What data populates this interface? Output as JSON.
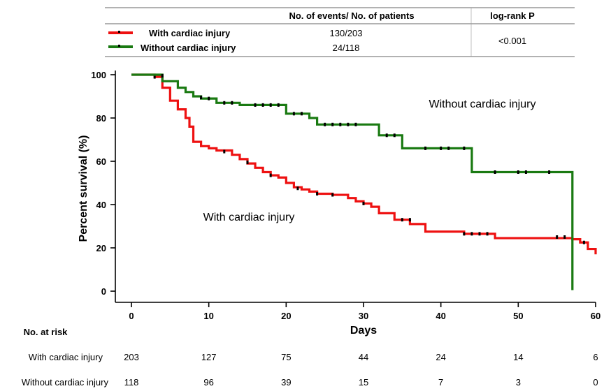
{
  "legend_table": {
    "col_events": "No. of events/ No. of patients",
    "col_p": "log-rank P",
    "rows": [
      {
        "label": "With cardiac injury",
        "events": "130/203"
      },
      {
        "label": "Without cardiac injury",
        "events": "24/118"
      }
    ],
    "p_value": "<0.001"
  },
  "colors": {
    "with": "#ee1111",
    "without": "#1a7a12"
  },
  "chart_data": {
    "type": "line",
    "subtype": "kaplan-meier step",
    "xlabel": "Days",
    "ylabel": "Percent survival (%)",
    "xlim": [
      0,
      60
    ],
    "ylim": [
      0,
      100
    ],
    "xticks": [
      0,
      10,
      20,
      30,
      40,
      50,
      60
    ],
    "yticks": [
      0,
      20,
      40,
      60,
      80,
      100
    ],
    "annotations": [
      "Without cardiac injury",
      "With cardiac injury"
    ],
    "series": [
      {
        "name": "With cardiac injury",
        "steps": [
          [
            0,
            100
          ],
          [
            3,
            99
          ],
          [
            4,
            94
          ],
          [
            5,
            88
          ],
          [
            6,
            84
          ],
          [
            7,
            80
          ],
          [
            7.5,
            76
          ],
          [
            8,
            69
          ],
          [
            9,
            67
          ],
          [
            10,
            66
          ],
          [
            11,
            65
          ],
          [
            13,
            63
          ],
          [
            14,
            61
          ],
          [
            15,
            59
          ],
          [
            16,
            57
          ],
          [
            17,
            55
          ],
          [
            18,
            53.5
          ],
          [
            19,
            52.5
          ],
          [
            20,
            50
          ],
          [
            21,
            48
          ],
          [
            22,
            47
          ],
          [
            23,
            46
          ],
          [
            24,
            45
          ],
          [
            26,
            44.5
          ],
          [
            28,
            43
          ],
          [
            29,
            41.5
          ],
          [
            30,
            40.5
          ],
          [
            31,
            39
          ],
          [
            32,
            36
          ],
          [
            34,
            33
          ],
          [
            36,
            31
          ],
          [
            38,
            27.5
          ],
          [
            43,
            26.5
          ],
          [
            47,
            24.5
          ],
          [
            57,
            24
          ],
          [
            58,
            22.5
          ],
          [
            59,
            19.5
          ],
          [
            60,
            17
          ]
        ],
        "censor": [
          [
            3,
            99
          ],
          [
            12,
            64.5
          ],
          [
            15,
            59.5
          ],
          [
            18,
            53.5
          ],
          [
            21.5,
            47.5
          ],
          [
            24,
            45
          ],
          [
            26,
            44.5
          ],
          [
            30,
            40.5
          ],
          [
            35,
            33
          ],
          [
            36,
            33
          ],
          [
            43,
            26.5
          ],
          [
            44,
            26.5
          ],
          [
            45,
            26.5
          ],
          [
            46,
            26.5
          ],
          [
            55,
            25
          ],
          [
            56,
            25
          ],
          [
            58.5,
            22.5
          ]
        ]
      },
      {
        "name": "Without cardiac injury",
        "steps": [
          [
            0,
            100
          ],
          [
            4,
            97
          ],
          [
            6,
            94
          ],
          [
            7,
            92
          ],
          [
            8,
            90
          ],
          [
            9,
            89
          ],
          [
            11,
            87
          ],
          [
            14,
            86
          ],
          [
            20,
            82
          ],
          [
            23,
            80
          ],
          [
            24,
            77
          ],
          [
            32,
            72
          ],
          [
            35,
            66
          ],
          [
            44,
            55
          ],
          [
            57,
            0.5
          ]
        ],
        "censor": [
          [
            4,
            99.5
          ],
          [
            9,
            89.5
          ],
          [
            10,
            89
          ],
          [
            12,
            87
          ],
          [
            13,
            87
          ],
          [
            16,
            86
          ],
          [
            17,
            86
          ],
          [
            18,
            86
          ],
          [
            19,
            86
          ],
          [
            21,
            82
          ],
          [
            22,
            82
          ],
          [
            25,
            77
          ],
          [
            26,
            77
          ],
          [
            27,
            77
          ],
          [
            28,
            77
          ],
          [
            29,
            77
          ],
          [
            33,
            72
          ],
          [
            34,
            72
          ],
          [
            38,
            66
          ],
          [
            40,
            66
          ],
          [
            41,
            66
          ],
          [
            43,
            66
          ],
          [
            47,
            55
          ],
          [
            50,
            55
          ],
          [
            51,
            55
          ],
          [
            54,
            55
          ]
        ]
      }
    ]
  },
  "risk_table": {
    "title": "No. at risk",
    "days": [
      "0",
      "10",
      "20",
      "30",
      "40",
      "50",
      "60"
    ],
    "rows": [
      {
        "label": "With cardiac injury",
        "values": [
          "203",
          "127",
          "75",
          "44",
          "24",
          "14",
          "6"
        ]
      },
      {
        "label": "Without cardiac injury",
        "values": [
          "118",
          "96",
          "39",
          "15",
          "7",
          "3",
          "0"
        ]
      }
    ]
  }
}
